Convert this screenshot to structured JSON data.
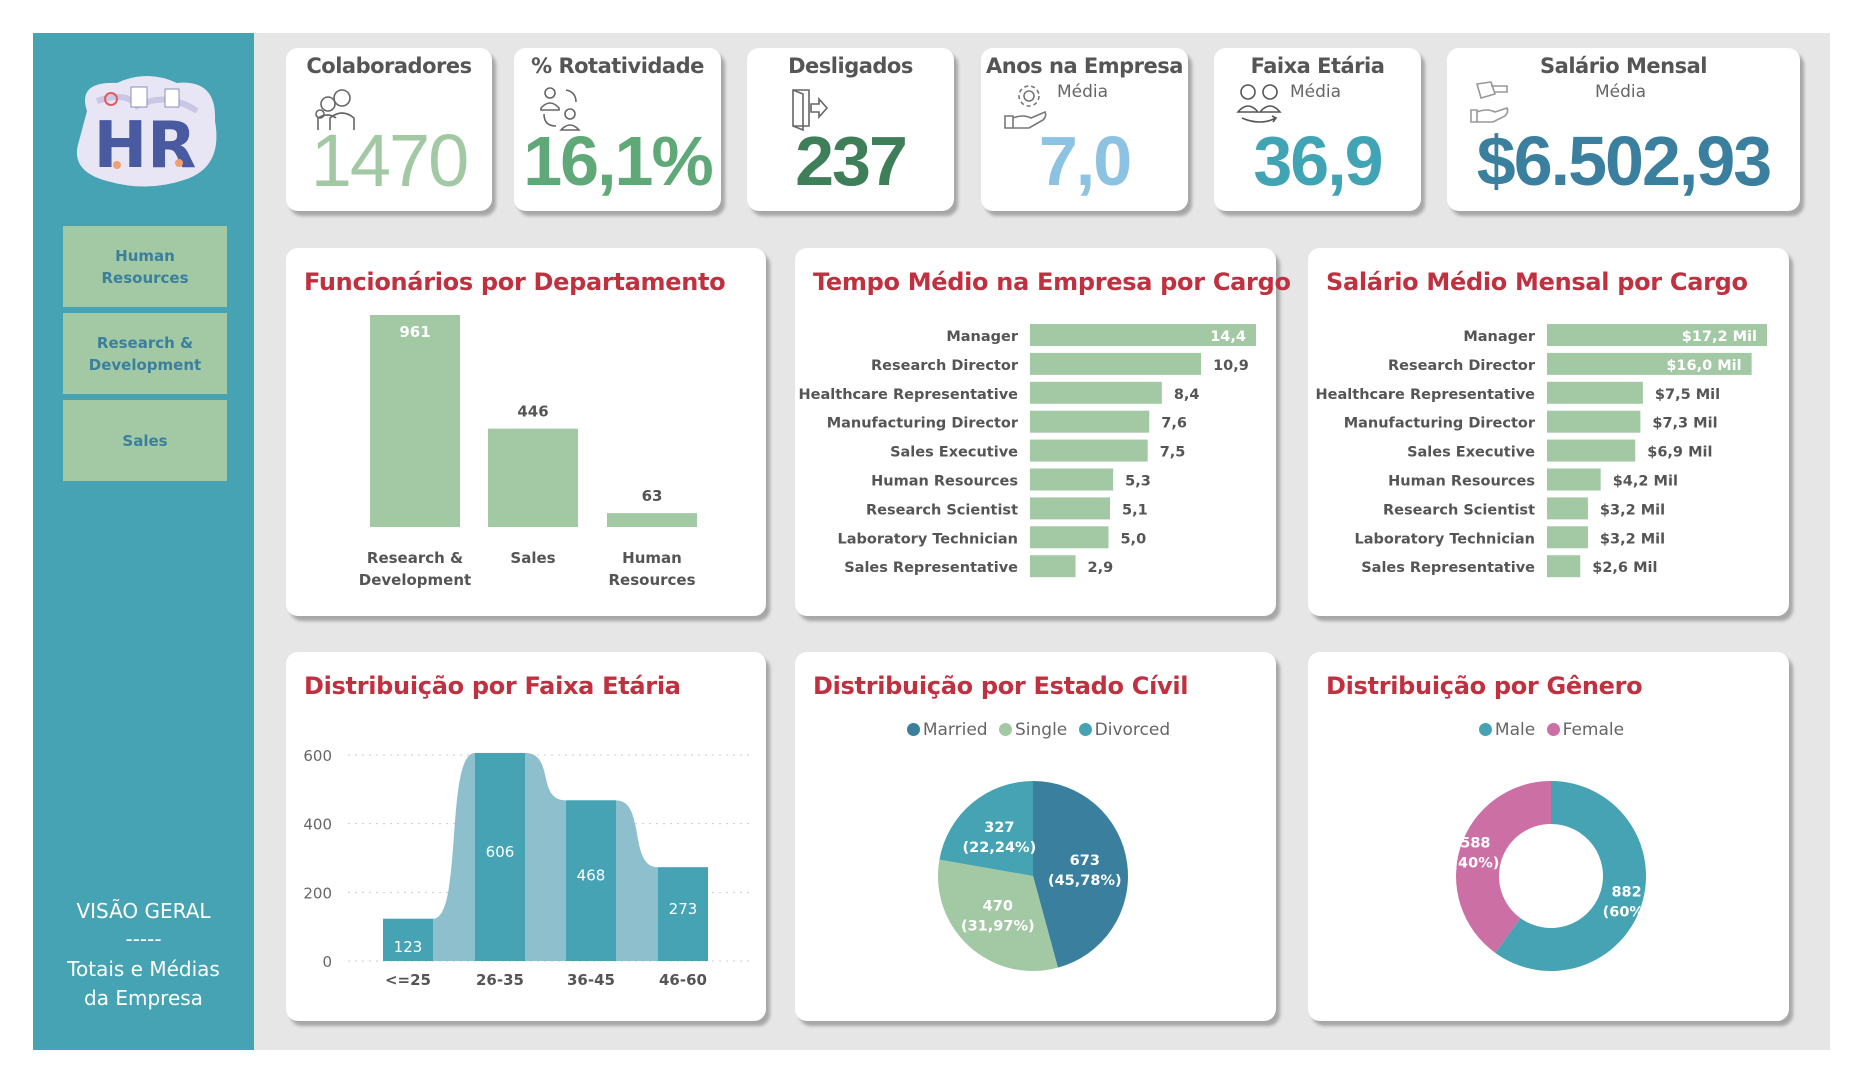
{
  "sidebar": {
    "logo_text": "HR",
    "buttons": [
      {
        "label": "Human Resources"
      },
      {
        "label": "Research & Development"
      },
      {
        "label": "Sales"
      }
    ],
    "section_title": "VISÃO GERAL",
    "divider": "-----",
    "section_subtitle_1": "Totais e Médias",
    "section_subtitle_2": "da Empresa"
  },
  "kpis": [
    {
      "title": "Colaboradores",
      "sub": "",
      "value": "1470",
      "icon": "people-icon",
      "color": "#a3c9a4"
    },
    {
      "title": "% Rotatividade",
      "sub": "",
      "value": "16,1%",
      "icon": "turnover-icon",
      "color": "#5fa878"
    },
    {
      "title": "Desligados",
      "sub": "",
      "value": "237",
      "icon": "exit-door-icon",
      "color": "#3e7f5a"
    },
    {
      "title": "Anos na Empresa",
      "sub": "Média",
      "value": "7,0",
      "icon": "gear-hand-icon",
      "color": "#8cc3e3"
    },
    {
      "title": "Faixa Etária",
      "sub": "Média",
      "value": "36,9",
      "icon": "age-icon",
      "color": "#40a4b4"
    },
    {
      "title": "Salário Mensal",
      "sub": "Média",
      "value": "$6.502,93",
      "icon": "money-hand-icon",
      "color": "#3a7f9e"
    }
  ],
  "colors": {
    "green": "#a3c9a4",
    "teal": "#45a3b3",
    "dark_teal": "#3a7f9e",
    "light_teal": "#8dbfcc",
    "pink": "#cc6fa5",
    "title_red": "#c0303e"
  },
  "chart_data": [
    {
      "type": "bar",
      "title": "Funcionários por Departamento",
      "categories": [
        "Research & Development",
        "Sales",
        "Human Resources"
      ],
      "category_lines": [
        [
          "Research &",
          "Development"
        ],
        [
          "Sales"
        ],
        [
          "Human",
          "Resources"
        ]
      ],
      "values": [
        961,
        446,
        63
      ],
      "labels": [
        "961",
        "446",
        "63"
      ]
    },
    {
      "type": "bar",
      "orientation": "horizontal",
      "title": "Tempo Médio na Empresa por Cargo",
      "categories": [
        "Manager",
        "Research Director",
        "Healthcare Representative",
        "Manufacturing Director",
        "Sales Executive",
        "Human Resources",
        "Research Scientist",
        "Laboratory Technician",
        "Sales Representative"
      ],
      "values": [
        14.4,
        10.9,
        8.4,
        7.6,
        7.5,
        5.3,
        5.1,
        5.0,
        2.9
      ],
      "labels": [
        "14,4",
        "10,9",
        "8,4",
        "7,6",
        "7,5",
        "5,3",
        "5,1",
        "5,0",
        "2,9"
      ]
    },
    {
      "type": "bar",
      "orientation": "horizontal",
      "title": "Salário Médio Mensal por Cargo",
      "categories": [
        "Manager",
        "Research Director",
        "Healthcare Representative",
        "Manufacturing Director",
        "Sales Executive",
        "Human Resources",
        "Research Scientist",
        "Laboratory Technician",
        "Sales Representative"
      ],
      "values": [
        17.2,
        16.0,
        7.5,
        7.3,
        6.9,
        4.2,
        3.2,
        3.2,
        2.6
      ],
      "labels": [
        "$17,2 Mil",
        "$16,0 Mil",
        "$7,5 Mil",
        "$7,3 Mil",
        "$6,9 Mil",
        "$4,2 Mil",
        "$3,2 Mil",
        "$3,2 Mil",
        "$2,6 Mil"
      ]
    },
    {
      "type": "bar",
      "title": "Distribuição por Faixa Etária",
      "categories": [
        "<=25",
        "26-35",
        "36-45",
        "46-60"
      ],
      "values": [
        123,
        606,
        468,
        273
      ],
      "labels": [
        "123",
        "606",
        "468",
        "273"
      ],
      "yticks": [
        "0",
        "200",
        "400",
        "600"
      ],
      "ylim": [
        0,
        600
      ],
      "grid": true
    },
    {
      "type": "pie",
      "title": "Distribuição por Estado Cívil",
      "legend": "top",
      "slices": [
        {
          "name": "Married",
          "value": 673,
          "label1": "673",
          "label2": "(45,78%)",
          "color": "#3a7f9e"
        },
        {
          "name": "Single",
          "value": 470,
          "label1": "470",
          "label2": "(31,97%)",
          "color": "#a3c9a4"
        },
        {
          "name": "Divorced",
          "value": 327,
          "label1": "327",
          "label2": "(22,24%)",
          "color": "#45a3b3"
        }
      ]
    },
    {
      "type": "pie",
      "donut": true,
      "title": "Distribuição por Gênero",
      "legend": "top",
      "slices": [
        {
          "name": "Male",
          "value": 882,
          "label1": "882",
          "label2": "(60%)",
          "color": "#45a3b3"
        },
        {
          "name": "Female",
          "value": 588,
          "label1": "588",
          "label2": "(40%)",
          "color": "#cc6fa5"
        }
      ]
    }
  ]
}
